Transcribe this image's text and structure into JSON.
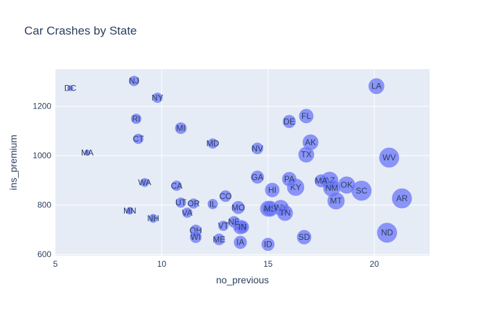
{
  "chart_data": {
    "type": "scatter",
    "title": "Car Crashes by State",
    "xlabel": "no_previous",
    "ylabel": "ins_premium",
    "xlim": [
      5,
      22.6
    ],
    "ylim": [
      595,
      1350
    ],
    "xticks": [
      5,
      10,
      15,
      20
    ],
    "yticks": [
      600,
      800,
      1000,
      1200
    ],
    "grid": true,
    "legend": "none",
    "colors": {
      "plot_bg": "#e5ecf6",
      "grid": "#ffffff",
      "marker": "#636efa",
      "marker_line": "#8a91f2",
      "text": "#2a3f5f"
    },
    "points": [
      {
        "label": "DC",
        "x": 5.7,
        "y": 1273,
        "size": 4
      },
      {
        "label": "NJ",
        "x": 8.7,
        "y": 1302,
        "size": 7
      },
      {
        "label": "NY",
        "x": 9.8,
        "y": 1234,
        "size": 7
      },
      {
        "label": "RI",
        "x": 8.8,
        "y": 1149,
        "size": 7
      },
      {
        "label": "CT",
        "x": 8.9,
        "y": 1068,
        "size": 7
      },
      {
        "label": "MA",
        "x": 6.5,
        "y": 1012,
        "size": 4
      },
      {
        "label": "MI",
        "x": 10.9,
        "y": 1111,
        "size": 8
      },
      {
        "label": "MD",
        "x": 12.4,
        "y": 1049,
        "size": 7
      },
      {
        "label": "WA",
        "x": 9.2,
        "y": 891,
        "size": 6
      },
      {
        "label": "UT",
        "x": 10.9,
        "y": 810,
        "size": 7
      },
      {
        "label": "OR",
        "x": 11.5,
        "y": 806,
        "size": 7
      },
      {
        "label": "IL",
        "x": 12.4,
        "y": 804,
        "size": 7
      },
      {
        "label": "VA",
        "x": 11.2,
        "y": 769,
        "size": 7
      },
      {
        "label": "MN",
        "x": 8.5,
        "y": 777,
        "size": 5
      },
      {
        "label": "NH",
        "x": 9.6,
        "y": 746,
        "size": 6
      },
      {
        "label": "CA",
        "x": 10.7,
        "y": 878,
        "size": 7
      },
      {
        "label": "CO",
        "x": 13.0,
        "y": 836,
        "size": 8
      },
      {
        "label": "MO",
        "x": 13.6,
        "y": 790,
        "size": 9
      },
      {
        "label": "NV",
        "x": 14.5,
        "y": 1029,
        "size": 8
      },
      {
        "label": "GA",
        "x": 14.5,
        "y": 913,
        "size": 9
      },
      {
        "label": "OH",
        "x": 11.6,
        "y": 697,
        "size": 8
      },
      {
        "label": "WI",
        "x": 11.6,
        "y": 670,
        "size": 8
      },
      {
        "label": "VT",
        "x": 12.9,
        "y": 716,
        "size": 7
      },
      {
        "label": "ME",
        "x": 12.7,
        "y": 661,
        "size": 8
      },
      {
        "label": "NE",
        "x": 13.4,
        "y": 732,
        "size": 8
      },
      {
        "label": "KS",
        "x": 13.7,
        "y": 711,
        "size": 10
      },
      {
        "label": "IN",
        "x": 13.8,
        "y": 711,
        "size": 9
      },
      {
        "label": "IA",
        "x": 13.7,
        "y": 649,
        "size": 9
      },
      {
        "label": "ID",
        "x": 15.0,
        "y": 641,
        "size": 9
      },
      {
        "label": "SD",
        "x": 16.7,
        "y": 670,
        "size": 10
      },
      {
        "label": "FL",
        "x": 16.8,
        "y": 1160,
        "size": 10
      },
      {
        "label": "DE",
        "x": 16.0,
        "y": 1138,
        "size": 9
      },
      {
        "label": "AK",
        "x": 17.0,
        "y": 1054,
        "size": 11
      },
      {
        "label": "TX",
        "x": 16.8,
        "y": 1004,
        "size": 11
      },
      {
        "label": "PA",
        "x": 16.0,
        "y": 905,
        "size": 10
      },
      {
        "label": "HI",
        "x": 15.2,
        "y": 861,
        "size": 10
      },
      {
        "label": "KY",
        "x": 16.3,
        "y": 872,
        "size": 12
      },
      {
        "label": "AL",
        "x": 15.0,
        "y": 785,
        "size": 11
      },
      {
        "label": "MS",
        "x": 15.1,
        "y": 785,
        "size": 11
      },
      {
        "label": "WY",
        "x": 15.6,
        "y": 789,
        "size": 11
      },
      {
        "label": "TN",
        "x": 15.8,
        "y": 768,
        "size": 11
      },
      {
        "label": "MA",
        "x": 17.5,
        "y": 898,
        "size": 9
      },
      {
        "label": "AZ",
        "x": 17.9,
        "y": 900,
        "size": 12
      },
      {
        "label": "NM",
        "x": 18.0,
        "y": 869,
        "size": 12
      },
      {
        "label": "OK",
        "x": 18.7,
        "y": 881,
        "size": 12
      },
      {
        "label": "MT",
        "x": 18.2,
        "y": 817,
        "size": 12
      },
      {
        "label": "SC",
        "x": 19.4,
        "y": 858,
        "size": 14
      },
      {
        "label": "LA",
        "x": 20.1,
        "y": 1281,
        "size": 11
      },
      {
        "label": "WV",
        "x": 20.7,
        "y": 992,
        "size": 14
      },
      {
        "label": "AR",
        "x": 21.3,
        "y": 827,
        "size": 14
      },
      {
        "label": "ND",
        "x": 20.6,
        "y": 688,
        "size": 14
      }
    ]
  }
}
